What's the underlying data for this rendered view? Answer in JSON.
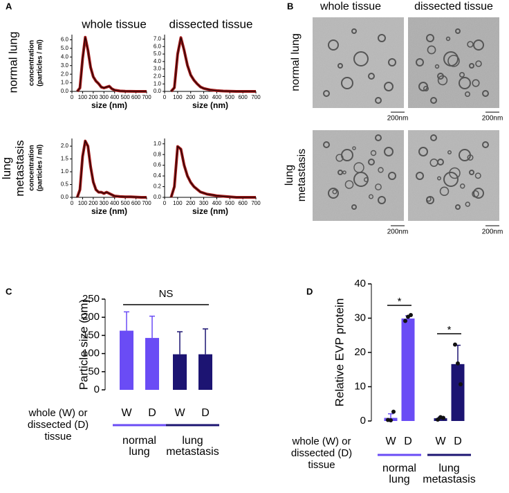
{
  "panel_labels": [
    "A",
    "B",
    "C",
    "D"
  ],
  "panel_a": {
    "col_labels": [
      "whole tissue",
      "dissected tissue"
    ],
    "row_labels": [
      [
        "normal lung"
      ],
      [
        "lung",
        "metastasis"
      ]
    ]
  },
  "panel_b": {
    "col_labels": [
      "whole tissue",
      "dissected tissue"
    ],
    "row_labels": [
      [
        "normal lung"
      ],
      [
        "lung",
        "metastasis"
      ]
    ],
    "scale_bar": "200nm"
  },
  "chart_data": [
    {
      "type": "line",
      "xlabel": "size (nm)",
      "ylabel": [
        "concentration",
        "(particles / ml)"
      ],
      "color": "#a01818",
      "line_color": "#000000",
      "x": [
        50,
        75,
        100,
        125,
        150,
        175,
        200,
        225,
        250,
        275,
        300,
        325,
        350,
        375,
        400,
        450,
        500,
        550,
        600,
        650,
        700
      ],
      "values": [
        0,
        0.4,
        3.8,
        6.3,
        4.8,
        2.8,
        1.7,
        1.2,
        0.9,
        0.5,
        0.4,
        0.5,
        0.6,
        0.3,
        0.15,
        0.05,
        0.02,
        0.01,
        0,
        0,
        0
      ],
      "xlim": [
        0,
        700
      ],
      "xticks": [
        0,
        100,
        200,
        300,
        400,
        500,
        600,
        700
      ],
      "ylim": [
        0,
        6.6
      ],
      "yticks": [
        {
          "value": 0,
          "label": "0.0"
        },
        {
          "value": 1,
          "label": "1.0"
        },
        {
          "value": 2,
          "label": "2.0"
        },
        {
          "value": 3,
          "label": "3.0"
        },
        {
          "value": 4,
          "label": "4.0"
        },
        {
          "value": 5,
          "label": "5.0"
        },
        {
          "value": 6,
          "label": "6.0"
        }
      ]
    },
    {
      "type": "line",
      "xlabel": "size (nm)",
      "color": "#a01818",
      "line_color": "#000000",
      "x": [
        50,
        75,
        100,
        125,
        150,
        175,
        200,
        225,
        250,
        275,
        300,
        325,
        350,
        375,
        400,
        450,
        500,
        550,
        600,
        650,
        700
      ],
      "values": [
        0,
        0.5,
        5.0,
        7.2,
        5.5,
        3.5,
        2.2,
        1.5,
        1.0,
        0.6,
        0.4,
        0.3,
        0.2,
        0.15,
        0.1,
        0.05,
        0.02,
        0,
        0,
        0,
        0
      ],
      "xlim": [
        0,
        700
      ],
      "xticks": [
        0,
        100,
        200,
        300,
        400,
        500,
        600,
        700
      ],
      "ylim": [
        0,
        7.6
      ],
      "yticks": [
        {
          "value": 0,
          "label": "0.0"
        },
        {
          "value": 1,
          "label": "1.0"
        },
        {
          "value": 2,
          "label": "2.0"
        },
        {
          "value": 3,
          "label": "3.0"
        },
        {
          "value": 4,
          "label": "4.0"
        },
        {
          "value": 5,
          "label": "5.0"
        },
        {
          "value": 6,
          "label": "6.0"
        },
        {
          "value": 7,
          "label": "7.0"
        }
      ]
    },
    {
      "type": "line",
      "xlabel": "size (nm)",
      "ylabel": [
        "concentration",
        "(particles / ml)"
      ],
      "color": "#a01818",
      "line_color": "#000000",
      "x": [
        50,
        75,
        100,
        125,
        150,
        175,
        200,
        225,
        250,
        275,
        300,
        325,
        350,
        375,
        400,
        450,
        500,
        550,
        600,
        650,
        700
      ],
      "values": [
        0,
        0.3,
        1.6,
        2.2,
        2.0,
        1.2,
        0.6,
        0.3,
        0.2,
        0.2,
        0.15,
        0.2,
        0.15,
        0.1,
        0.05,
        0.03,
        0.02,
        0.02,
        0.01,
        0,
        0
      ],
      "xlim": [
        0,
        700
      ],
      "xticks": [
        0,
        100,
        200,
        300,
        400,
        500,
        600,
        700
      ],
      "ylim": [
        0,
        2.3
      ],
      "yticks": [
        {
          "value": 0,
          "label": "0.0"
        },
        {
          "value": 0.5,
          "label": "0.5"
        },
        {
          "value": 1,
          "label": "1.0"
        },
        {
          "value": 1.5,
          "label": "1.5"
        },
        {
          "value": 2,
          "label": "2.0"
        }
      ]
    },
    {
      "type": "line",
      "xlabel": "size (nm)",
      "color": "#a01818",
      "line_color": "#000000",
      "x": [
        50,
        75,
        100,
        125,
        150,
        175,
        200,
        225,
        250,
        275,
        300,
        325,
        350,
        375,
        400,
        450,
        500,
        550,
        600,
        650,
        700
      ],
      "values": [
        0,
        0.2,
        0.95,
        0.9,
        0.6,
        0.4,
        0.28,
        0.2,
        0.15,
        0.1,
        0.08,
        0.06,
        0.05,
        0.04,
        0.03,
        0.02,
        0.01,
        0,
        0,
        0,
        0
      ],
      "xlim": [
        0,
        700
      ],
      "xticks": [
        0,
        100,
        200,
        300,
        400,
        500,
        600,
        700
      ],
      "ylim": [
        0,
        1.1
      ],
      "yticks": [
        {
          "value": 0,
          "label": "0.0"
        },
        {
          "value": 0.2,
          "label": "0.2"
        },
        {
          "value": 0.4,
          "label": "0.4"
        },
        {
          "value": 0.6,
          "label": "0.6"
        },
        {
          "value": 0.8,
          "label": "0.8"
        },
        {
          "value": 1,
          "label": "1.0"
        }
      ]
    },
    {
      "type": "bar",
      "ylabel": "Particle size (nm)",
      "categories": [
        "W",
        "D",
        "W",
        "D"
      ],
      "values": [
        163,
        143,
        98,
        98
      ],
      "errors": [
        52,
        60,
        62,
        70
      ],
      "colors": [
        "#6a4cf5",
        "#6a4cf5",
        "#1c1472",
        "#1c1472"
      ],
      "ylim": [
        0,
        250
      ],
      "yticks": [
        0,
        50,
        100,
        150,
        200,
        250
      ],
      "annotations": [
        "NS"
      ],
      "group_axis_label": [
        "whole (W) or",
        "dissected (D)",
        "tissue"
      ],
      "groups": [
        [
          "normal",
          "lung"
        ],
        [
          "lung",
          "metastasis"
        ]
      ]
    },
    {
      "type": "bar",
      "ylabel": "Relative EVP protein",
      "categories": [
        "W",
        "D",
        "W",
        "D"
      ],
      "values": [
        0.9,
        29.9,
        0.8,
        16.6
      ],
      "errors": [
        1.2,
        0.8,
        0.3,
        5.5
      ],
      "points": [
        [
          0.3,
          0.2,
          2.7
        ],
        [
          29.2,
          30.4,
          30.9
        ],
        [
          0.4,
          1.1,
          0.9
        ],
        [
          22.3,
          16.8,
          10.7
        ]
      ],
      "colors": [
        "#6a4cf5",
        "#6a4cf5",
        "#1c1472",
        "#1c1472"
      ],
      "ylim": [
        0,
        40
      ],
      "yticks": [
        0,
        10,
        20,
        30,
        40
      ],
      "annotations": [
        "*",
        "*"
      ],
      "group_axis_label": [
        "whole (W) or",
        "dissected (D)",
        "tissue"
      ],
      "groups": [
        [
          "normal",
          "lung"
        ],
        [
          "lung",
          "metastasis"
        ]
      ]
    }
  ]
}
